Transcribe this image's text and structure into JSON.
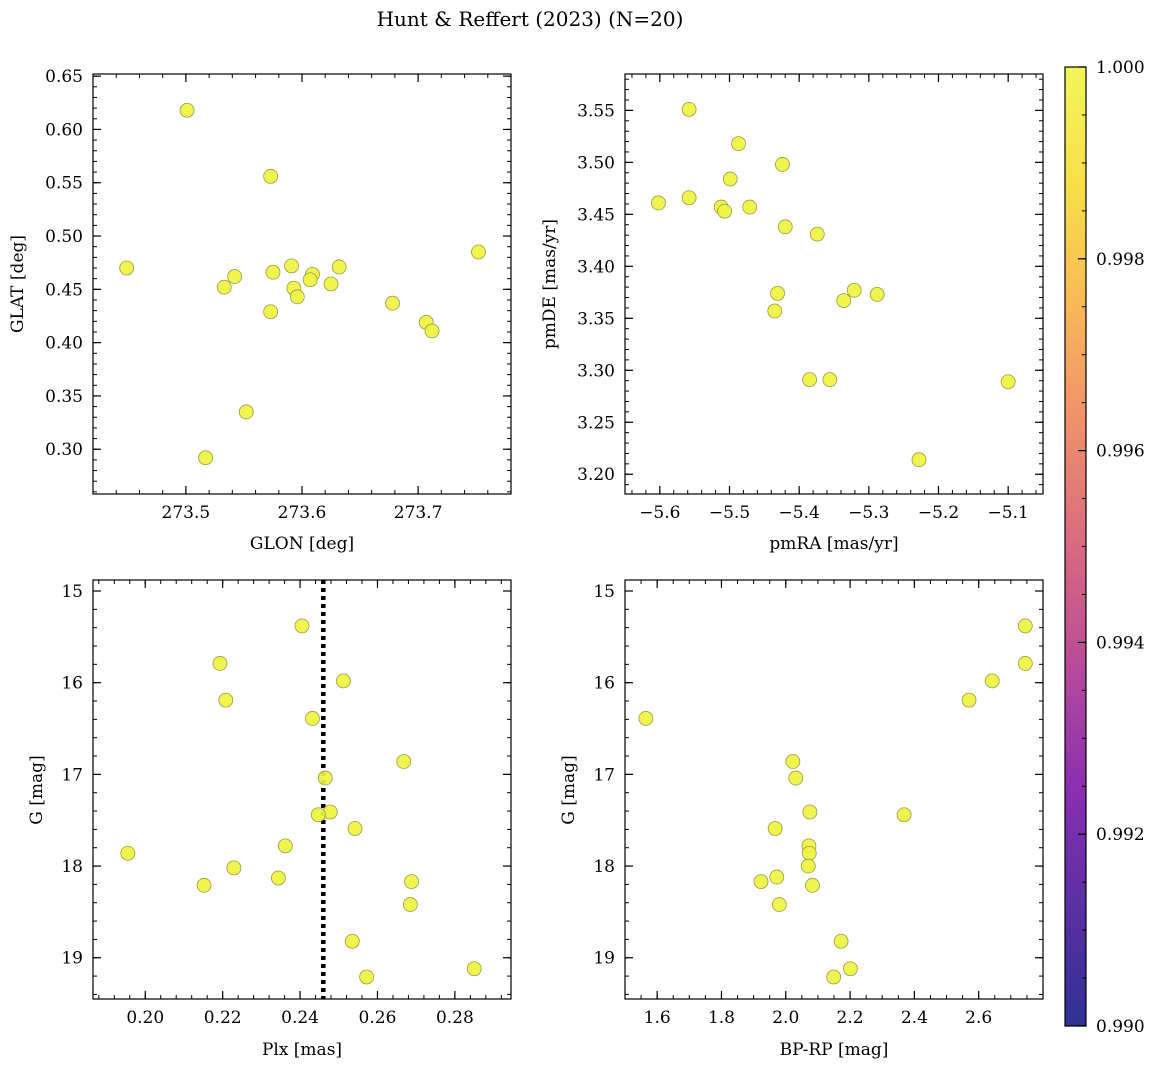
{
  "figure": {
    "title": "Hunt & Reffert (2023) (N=20)",
    "point_color": "#eef43f",
    "point_edge": "#9a9a40",
    "vline_color": "#000000"
  },
  "colorbar": {
    "min": 0.99,
    "max": 1.0,
    "tick_labels": [
      "0.990",
      "0.992",
      "0.994",
      "0.996",
      "0.998",
      "1.000"
    ],
    "tick_values": [
      0.99,
      0.992,
      0.994,
      0.996,
      0.998,
      1.0
    ],
    "stops": [
      "#2f3193",
      "#5b2fa4",
      "#8a2fb0",
      "#b84a9a",
      "#d86a80",
      "#ee8f6c",
      "#f8b758",
      "#f7df48",
      "#f3f55a"
    ]
  },
  "chart_data": [
    {
      "id": "glon-glat",
      "type": "scatter",
      "xlabel": "GLON [deg]",
      "ylabel": "GLAT [deg]",
      "xlim": [
        273.42,
        273.78
      ],
      "ylim": [
        0.258,
        0.652
      ],
      "xticks": [
        273.5,
        273.6,
        273.7
      ],
      "xtick_labels": [
        "273.5",
        "273.6",
        "273.7"
      ],
      "yticks": [
        0.3,
        0.35,
        0.4,
        0.45,
        0.5,
        0.55,
        0.6,
        0.65
      ],
      "ytick_labels": [
        "0.30",
        "0.35",
        "0.40",
        "0.45",
        "0.50",
        "0.55",
        "0.60",
        "0.65"
      ],
      "x_minor_step": 0.02,
      "y_minor_step": 0.01,
      "y_inverted": false,
      "x": [
        273.501,
        273.449,
        273.573,
        273.533,
        273.542,
        273.575,
        273.591,
        273.609,
        273.632,
        273.593,
        273.607,
        273.625,
        273.596,
        273.573,
        273.678,
        273.707,
        273.712,
        273.752,
        273.552,
        273.517
      ],
      "y": [
        0.618,
        0.47,
        0.556,
        0.452,
        0.462,
        0.466,
        0.472,
        0.464,
        0.471,
        0.451,
        0.459,
        0.455,
        0.443,
        0.429,
        0.437,
        0.419,
        0.411,
        0.485,
        0.335,
        0.292
      ]
    },
    {
      "id": "pmra-pmde",
      "type": "scatter",
      "xlabel": "pmRA [mas/yr]",
      "ylabel": "pmDE [mas/yr]",
      "xlim": [
        -5.65,
        -5.05
      ],
      "ylim": [
        3.181,
        3.585
      ],
      "xticks": [
        -5.6,
        -5.5,
        -5.4,
        -5.3,
        -5.2,
        -5.1
      ],
      "xtick_labels": [
        "−5.6",
        "−5.5",
        "−5.4",
        "−5.3",
        "−5.2",
        "−5.1"
      ],
      "yticks": [
        3.2,
        3.25,
        3.3,
        3.35,
        3.4,
        3.45,
        3.5,
        3.55
      ],
      "ytick_labels": [
        "3.20",
        "3.25",
        "3.30",
        "3.35",
        "3.40",
        "3.45",
        "3.50",
        "3.55"
      ],
      "x_minor_step": 0.02,
      "y_minor_step": 0.01,
      "y_inverted": false,
      "x": [
        -5.558,
        -5.487,
        -5.424,
        -5.499,
        -5.602,
        -5.558,
        -5.512,
        -5.507,
        -5.471,
        -5.42,
        -5.374,
        -5.431,
        -5.321,
        -5.288,
        -5.336,
        -5.435,
        -5.385,
        -5.356,
        -5.1,
        -5.228
      ],
      "y": [
        3.551,
        3.518,
        3.498,
        3.484,
        3.461,
        3.466,
        3.457,
        3.453,
        3.457,
        3.438,
        3.431,
        3.374,
        3.377,
        3.373,
        3.367,
        3.357,
        3.291,
        3.291,
        3.289,
        3.214
      ]
    },
    {
      "id": "plx-g",
      "type": "scatter",
      "xlabel": "Plx [mas]",
      "ylabel": "G [mag]",
      "xlim": [
        0.1865,
        0.2945
      ],
      "ylim": [
        14.88,
        19.45
      ],
      "xticks": [
        0.2,
        0.22,
        0.24,
        0.26,
        0.28
      ],
      "xtick_labels": [
        "0.20",
        "0.22",
        "0.24",
        "0.26",
        "0.28"
      ],
      "yticks": [
        15,
        16,
        17,
        18,
        19
      ],
      "ytick_labels": [
        "15",
        "16",
        "17",
        "18",
        "19"
      ],
      "x_minor_step": 0.004,
      "y_minor_step": 0.2,
      "y_inverted": true,
      "vline": 0.246,
      "x": [
        0.2405,
        0.2193,
        0.2208,
        0.2512,
        0.2432,
        0.2668,
        0.2465,
        0.2478,
        0.2447,
        0.2542,
        0.2362,
        0.1955,
        0.2229,
        0.2344,
        0.2152,
        0.2688,
        0.2685,
        0.2535,
        0.2572,
        0.285
      ],
      "y": [
        15.38,
        15.79,
        16.19,
        15.98,
        16.39,
        16.86,
        17.04,
        17.41,
        17.44,
        17.59,
        17.78,
        17.86,
        18.02,
        18.13,
        18.21,
        18.17,
        18.42,
        18.82,
        19.21,
        19.12
      ]
    },
    {
      "id": "bprp-g",
      "type": "scatter",
      "xlabel": "BP-RP [mag]",
      "ylabel": "G [mag]",
      "xlim": [
        1.5,
        2.8
      ],
      "ylim": [
        14.88,
        19.45
      ],
      "xticks": [
        1.6,
        1.8,
        2.0,
        2.2,
        2.4,
        2.6
      ],
      "xtick_labels": [
        "1.6",
        "1.8",
        "2.0",
        "2.2",
        "2.4",
        "2.6"
      ],
      "yticks": [
        15,
        16,
        17,
        18,
        19
      ],
      "ytick_labels": [
        "15",
        "16",
        "17",
        "18",
        "19"
      ],
      "x_minor_step": 0.05,
      "y_minor_step": 0.2,
      "y_inverted": true,
      "x": [
        2.745,
        2.745,
        2.642,
        2.57,
        1.565,
        2.022,
        2.031,
        2.075,
        2.368,
        1.967,
        2.072,
        2.073,
        2.07,
        1.972,
        1.923,
        2.083,
        1.98,
        2.172,
        2.149,
        2.201
      ],
      "y": [
        15.38,
        15.79,
        15.98,
        16.19,
        16.39,
        16.86,
        17.04,
        17.41,
        17.44,
        17.59,
        17.78,
        17.86,
        18.0,
        18.12,
        18.17,
        18.21,
        18.42,
        18.82,
        19.21,
        19.12
      ]
    }
  ]
}
